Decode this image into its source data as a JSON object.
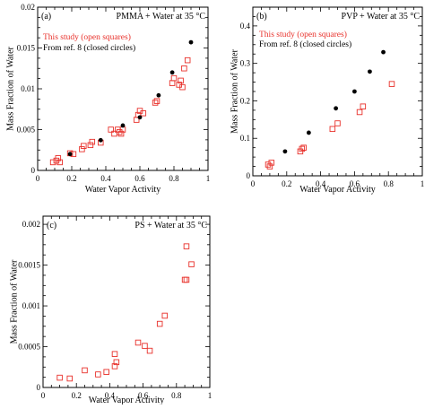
{
  "colors": {
    "study": "#e8302a",
    "reference": "#000000",
    "axis": "#000000"
  },
  "chart_data": [
    {
      "type": "scatter",
      "panel_label": "(a)",
      "title": "PMMA + Water at 35 °C",
      "xlabel": "Water Vapor Activity",
      "ylabel": "Mass Fraction of Water",
      "xlim": [
        0,
        1
      ],
      "ylim": [
        0,
        0.02
      ],
      "xticks": [
        "0",
        "0.2",
        "0.4",
        "0.6",
        "0.8",
        "1"
      ],
      "yticks": [
        "0",
        "0.005",
        "0.01",
        "0.015",
        "0.02"
      ],
      "legend": [
        "This study (open squares)",
        "From ref. 8 (closed circles)"
      ],
      "series": [
        {
          "name": "This study (open squares)",
          "marker": "open-square",
          "x": [
            0.09,
            0.11,
            0.12,
            0.13,
            0.19,
            0.21,
            0.26,
            0.27,
            0.31,
            0.32,
            0.37,
            0.43,
            0.45,
            0.47,
            0.48,
            0.49,
            0.5,
            0.58,
            0.59,
            0.6,
            0.62,
            0.69,
            0.7,
            0.79,
            0.8,
            0.83,
            0.84,
            0.85,
            0.86,
            0.88
          ],
          "y": [
            0.001,
            0.0012,
            0.0015,
            0.001,
            0.0021,
            0.002,
            0.0026,
            0.003,
            0.0031,
            0.0035,
            0.0034,
            0.005,
            0.0045,
            0.005,
            0.0047,
            0.0045,
            0.005,
            0.0062,
            0.0068,
            0.0073,
            0.007,
            0.0083,
            0.0085,
            0.0107,
            0.0113,
            0.0105,
            0.011,
            0.0102,
            0.0125,
            0.0135
          ]
        },
        {
          "name": "From ref. 8 (closed circles)",
          "marker": "filled-circle",
          "x": [
            0.19,
            0.37,
            0.5,
            0.6,
            0.71,
            0.79,
            0.9
          ],
          "y": [
            0.002,
            0.0037,
            0.0055,
            0.0065,
            0.0092,
            0.012,
            0.0157
          ]
        }
      ]
    },
    {
      "type": "scatter",
      "panel_label": "(b)",
      "title": "PVP + Water at 35 °C",
      "xlabel": "Water Vapor Activity",
      "ylabel": "Mass Fraction of Water",
      "xlim": [
        0,
        1
      ],
      "ylim": [
        0,
        0.45
      ],
      "xticks": [
        "0",
        "0.2",
        "0.4",
        "0.6",
        "0.8",
        "1"
      ],
      "yticks": [
        "0",
        "0.1",
        "0.2",
        "0.3",
        "0.4"
      ],
      "legend": [
        "This study (open squares)",
        "From ref. 8 (closed circles)"
      ],
      "series": [
        {
          "name": "This study (open squares)",
          "marker": "open-square",
          "x": [
            0.09,
            0.1,
            0.11,
            0.28,
            0.29,
            0.3,
            0.47,
            0.5,
            0.63,
            0.65,
            0.82
          ],
          "y": [
            0.03,
            0.025,
            0.035,
            0.065,
            0.072,
            0.075,
            0.125,
            0.14,
            0.17,
            0.185,
            0.245
          ]
        },
        {
          "name": "From ref. 8 (closed circles)",
          "marker": "filled-circle",
          "x": [
            0.19,
            0.33,
            0.49,
            0.6,
            0.69,
            0.77
          ],
          "y": [
            0.065,
            0.115,
            0.18,
            0.225,
            0.278,
            0.33
          ]
        }
      ]
    },
    {
      "type": "scatter",
      "panel_label": "(c)",
      "title": "PS + Water at 35 °C",
      "xlabel": "Water Vapor Activity",
      "ylabel": "Mass Fraction of Water",
      "xlim": [
        0,
        1
      ],
      "ylim": [
        0,
        0.0021
      ],
      "xticks": [
        "0",
        "0.2",
        "0.4",
        "0.6",
        "0.8",
        "1"
      ],
      "yticks": [
        "0",
        "0.0005",
        "0.001",
        "0.0015",
        "0.002"
      ],
      "series": [
        {
          "name": "",
          "marker": "open-square",
          "x": [
            0.1,
            0.16,
            0.25,
            0.33,
            0.38,
            0.43,
            0.43,
            0.44,
            0.57,
            0.61,
            0.64,
            0.7,
            0.73,
            0.85,
            0.86,
            0.89,
            0.86
          ],
          "y": [
            0.00012,
            0.00011,
            0.00021,
            0.00016,
            0.00019,
            0.00026,
            0.00041,
            0.00031,
            0.00055,
            0.00051,
            0.00045,
            0.00078,
            0.00088,
            0.00132,
            0.00173,
            0.00151,
            0.00132
          ]
        }
      ]
    }
  ]
}
